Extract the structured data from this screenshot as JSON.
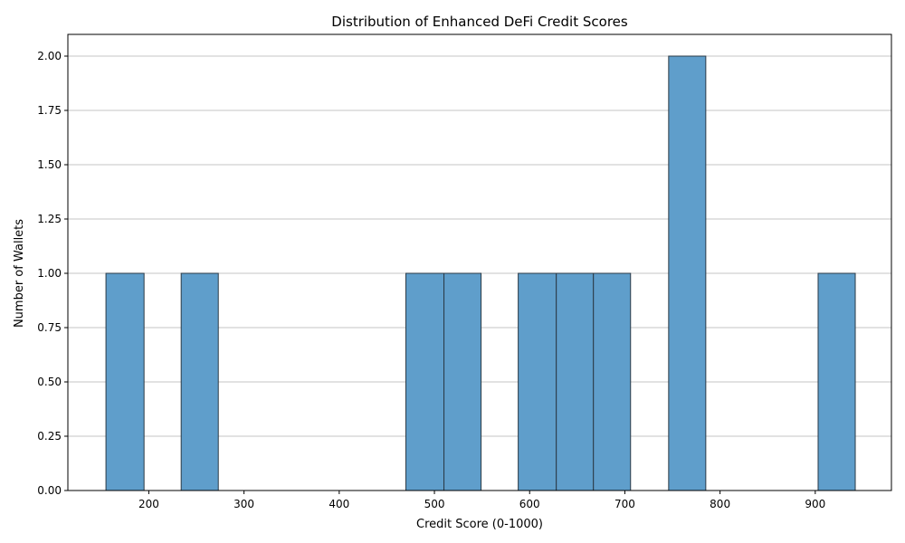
{
  "chart_data": {
    "type": "bar",
    "title": "Distribution of Enhanced DeFi Credit Scores",
    "xlabel": "Credit Score (0-1000)",
    "ylabel": "Number of Wallets",
    "xlim": [
      115,
      980
    ],
    "ylim": [
      0,
      2.1
    ],
    "x_ticks": [
      200,
      300,
      400,
      500,
      600,
      700,
      800,
      900
    ],
    "x_tick_labels": [
      "200",
      "300",
      "400",
      "500",
      "600",
      "700",
      "800",
      "900"
    ],
    "y_ticks": [
      0,
      0.25,
      0.5,
      0.75,
      1.0,
      1.25,
      1.5,
      1.75,
      2.0
    ],
    "y_tick_labels": [
      "0.00",
      "0.25",
      "0.50",
      "0.75",
      "1.00",
      "1.25",
      "1.50",
      "1.75",
      "2.00"
    ],
    "grid": "y",
    "bar_color": "#5f9ecb",
    "edge_color": "#2b3a46",
    "bins": [
      {
        "x0": 155,
        "x1": 195,
        "count": 1
      },
      {
        "x0": 195,
        "x1": 234,
        "count": 0
      },
      {
        "x0": 234,
        "x1": 273,
        "count": 1
      },
      {
        "x0": 273,
        "x1": 313,
        "count": 0
      },
      {
        "x0": 313,
        "x1": 352,
        "count": 0
      },
      {
        "x0": 352,
        "x1": 392,
        "count": 0
      },
      {
        "x0": 392,
        "x1": 431,
        "count": 0
      },
      {
        "x0": 431,
        "x1": 470,
        "count": 0
      },
      {
        "x0": 470,
        "x1": 510,
        "count": 1
      },
      {
        "x0": 510,
        "x1": 549,
        "count": 1
      },
      {
        "x0": 549,
        "x1": 588,
        "count": 0
      },
      {
        "x0": 588,
        "x1": 628,
        "count": 1
      },
      {
        "x0": 628,
        "x1": 667,
        "count": 1
      },
      {
        "x0": 667,
        "x1": 706,
        "count": 1
      },
      {
        "x0": 706,
        "x1": 746,
        "count": 0
      },
      {
        "x0": 746,
        "x1": 785,
        "count": 2
      },
      {
        "x0": 785,
        "x1": 824,
        "count": 0
      },
      {
        "x0": 824,
        "x1": 864,
        "count": 0
      },
      {
        "x0": 864,
        "x1": 903,
        "count": 0
      },
      {
        "x0": 903,
        "x1": 942,
        "count": 1
      }
    ]
  }
}
